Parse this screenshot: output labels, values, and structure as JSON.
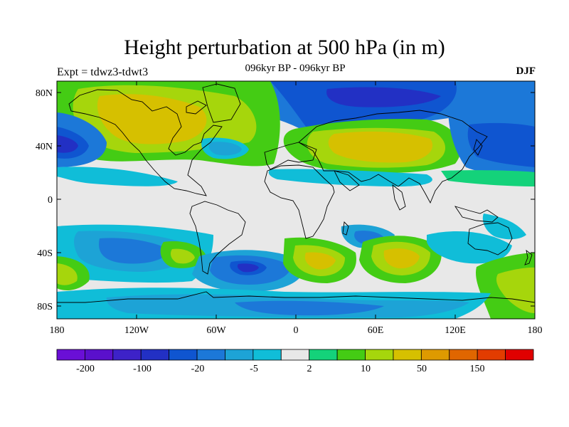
{
  "header": {
    "title": "Height perturbation at 500 hPa (in m)",
    "left_label": "Expt = tdwz3-tdwt3",
    "center_label": "096kyr BP - 096kyr BP",
    "right_label": "DJF"
  },
  "axes": {
    "lat_labels": [
      "80N",
      "40N",
      "0",
      "40S",
      "80S"
    ],
    "lat_values": [
      80,
      40,
      0,
      -40,
      -80
    ],
    "lon_labels": [
      "180",
      "120W",
      "60W",
      "0",
      "60E",
      "120E",
      "180"
    ],
    "lon_values": [
      -180,
      -120,
      -60,
      0,
      60,
      120,
      180
    ]
  },
  "colorbar": {
    "colors": [
      "#6a0fd6",
      "#5a10cc",
      "#3d22c8",
      "#2230c4",
      "#0f55d0",
      "#1c78d8",
      "#1da3d6",
      "#10bdd8",
      "#e8e8e8",
      "#14d27a",
      "#44cc14",
      "#a6d60c",
      "#d6c000",
      "#de9a00",
      "#e06600",
      "#e23c00",
      "#e00000"
    ],
    "labels": [
      "-200",
      "-100",
      "-20",
      "-5",
      "2",
      "10",
      "50",
      "150"
    ]
  },
  "colors": {
    "background": "#e8e8e8",
    "land_outline": "#000000"
  }
}
